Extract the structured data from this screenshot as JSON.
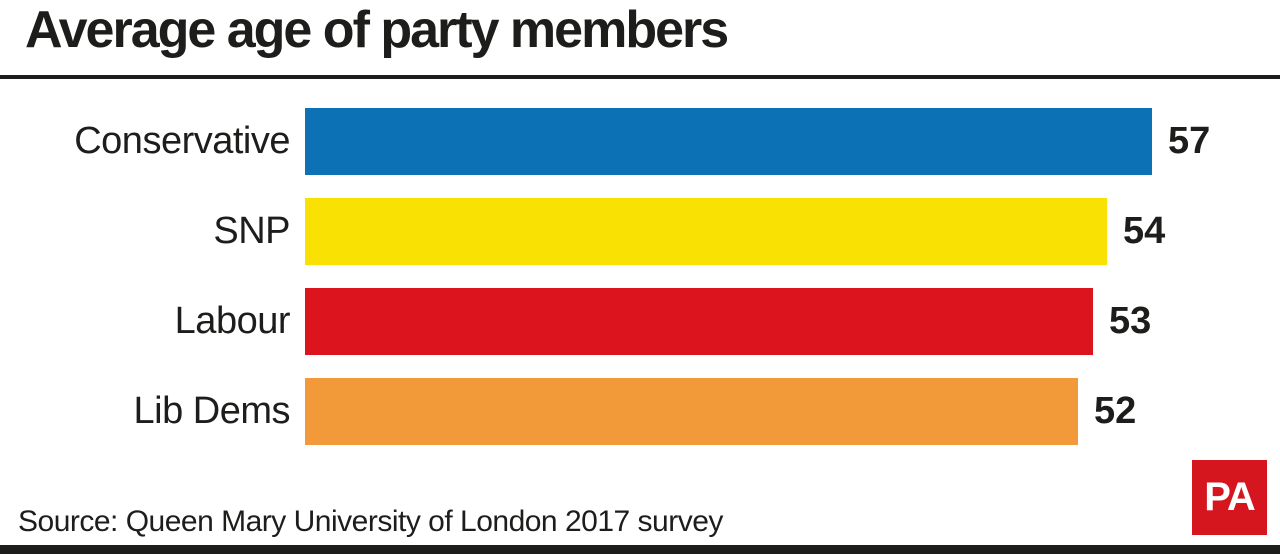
{
  "title": "Average age of party members",
  "source": "Source: Queen Mary University of London 2017 survey",
  "logo": {
    "text": "PA",
    "color": "#d6161e"
  },
  "colors": {
    "text": "#1d1d1b",
    "rule": "#1d1d1b",
    "bottom_bar": "#1d1d1b"
  },
  "chart_data": {
    "type": "bar",
    "orientation": "horizontal",
    "title": "Average age of party members",
    "xlabel": "",
    "ylabel": "",
    "categories": [
      "Conservative",
      "SNP",
      "Labour",
      "Lib Dems"
    ],
    "values": [
      57,
      54,
      53,
      52
    ],
    "bar_colors": [
      "#0d71b5",
      "#f9e104",
      "#dc141e",
      "#f29a3a"
    ],
    "value_labels": true,
    "xlim": [
      0,
      57
    ],
    "grid": false,
    "legend": false
  }
}
